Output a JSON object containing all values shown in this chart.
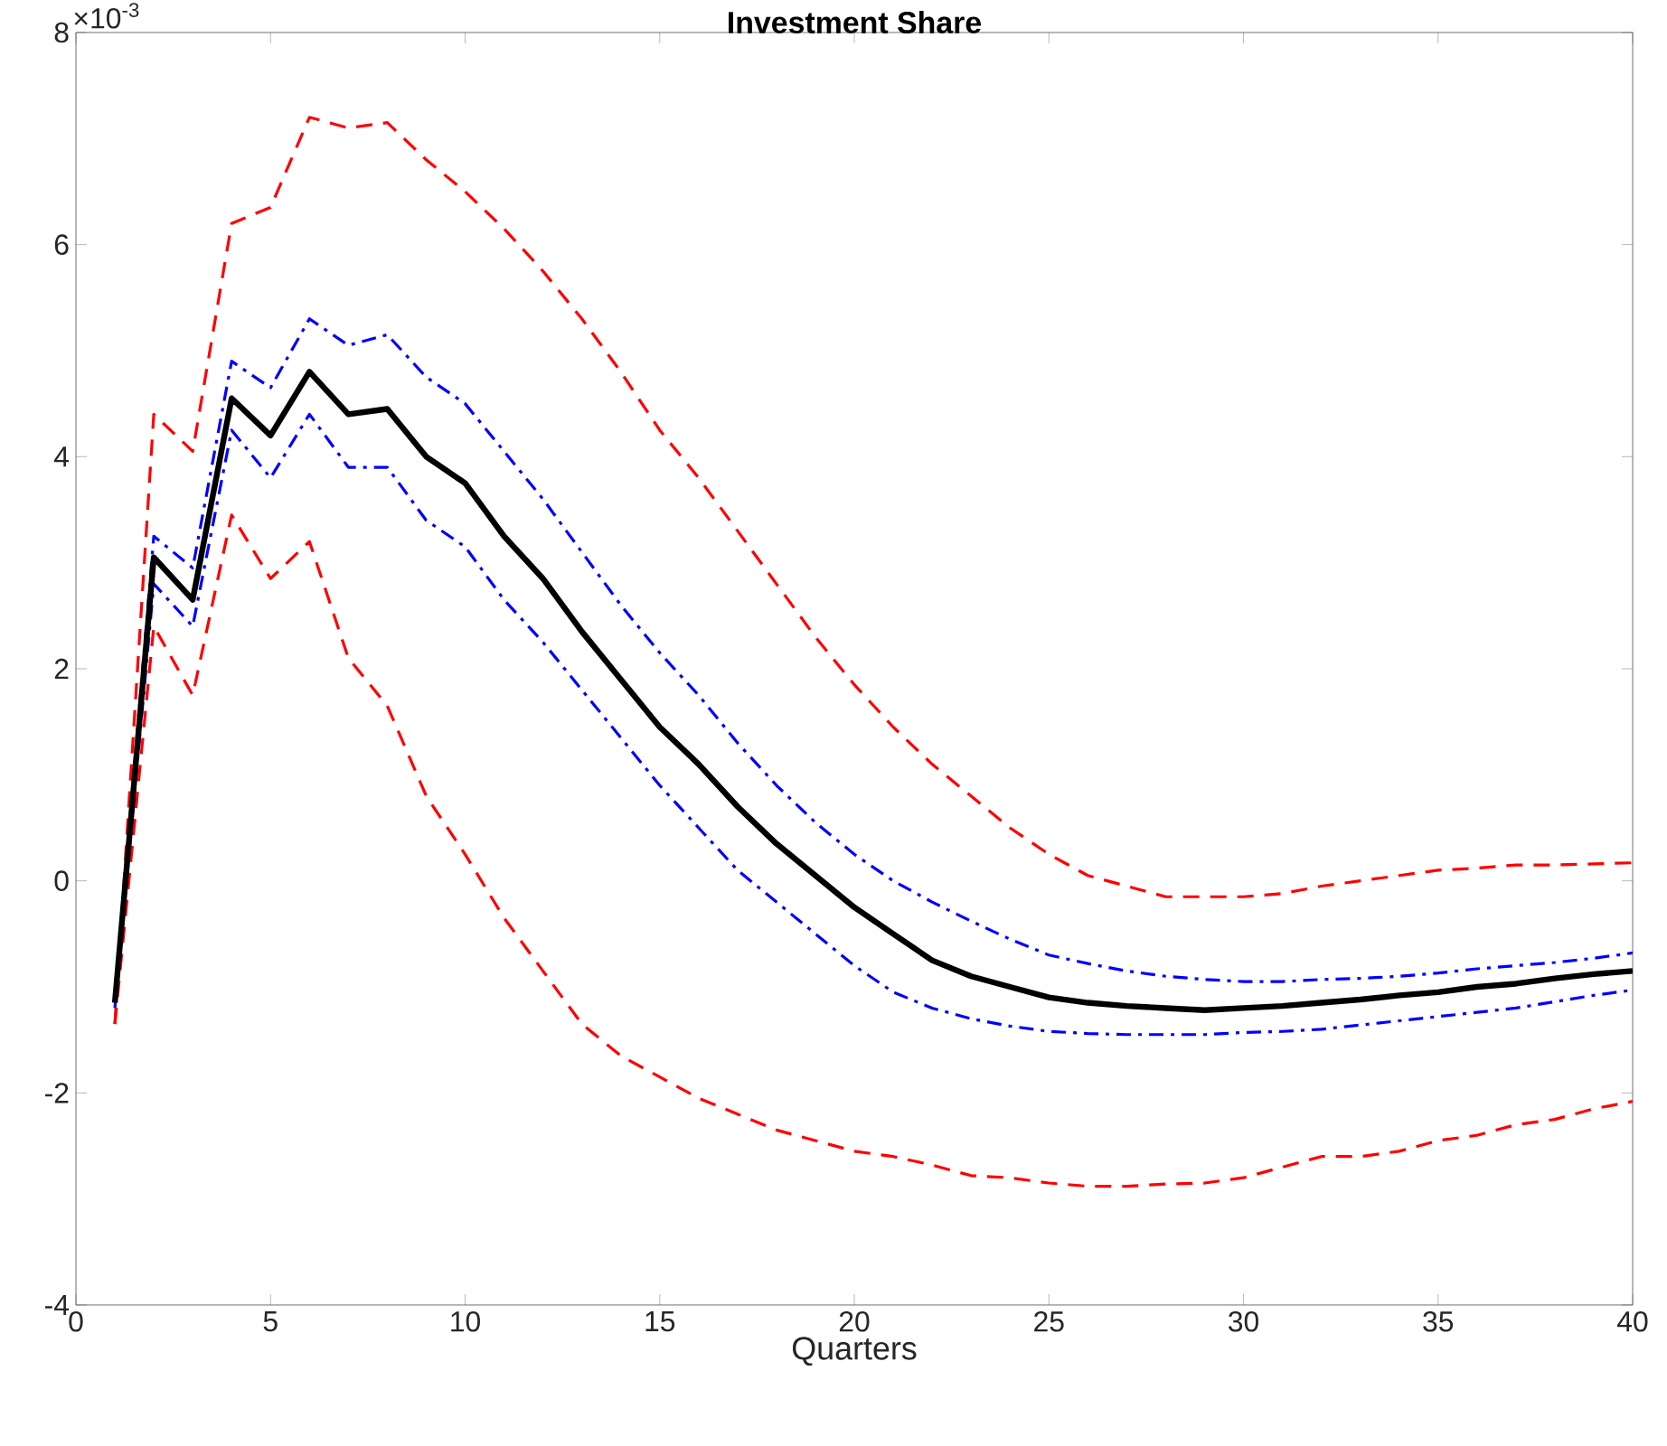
{
  "chart_data": {
    "type": "line",
    "title": "Investment Share",
    "xlabel": "Quarters",
    "annotations": [
      "×10$^{-3}$"
    ],
    "x": [
      1,
      2,
      3,
      4,
      5,
      6,
      7,
      8,
      9,
      10,
      11,
      12,
      13,
      14,
      15,
      16,
      17,
      18,
      19,
      20,
      21,
      22,
      23,
      24,
      25,
      26,
      27,
      28,
      29,
      30,
      31,
      32,
      33,
      34,
      35,
      36,
      37,
      38,
      39,
      40
    ],
    "xlim": [
      0,
      40
    ],
    "ylim": [
      -4,
      8
    ],
    "xticks": [
      0,
      5,
      10,
      15,
      20,
      25,
      30,
      35,
      40
    ],
    "yticks": [
      -4,
      -2,
      0,
      2,
      4,
      6,
      8
    ],
    "grid": false,
    "series": [
      {
        "color": "#ff0000",
        "line_style": "dashed",
        "values": [
          -1.35,
          4.4,
          4.05,
          6.2,
          6.35,
          7.2,
          7.1,
          7.15,
          6.8,
          6.5,
          6.15,
          5.75,
          5.3,
          4.8,
          4.25,
          3.8,
          3.3,
          2.8,
          2.3,
          1.85,
          1.45,
          1.1,
          0.8,
          0.5,
          0.25,
          0.05,
          -0.05,
          -0.15,
          -0.15,
          -0.15,
          -0.12,
          -0.05,
          0,
          0.05,
          0.1,
          0.12,
          0.15,
          0.15,
          0.16,
          0.17
        ]
      },
      {
        "color": "#ff0000",
        "line_style": "dashed",
        "values": [
          -1.35,
          2.4,
          1.75,
          3.45,
          2.85,
          3.2,
          2.1,
          1.65,
          0.8,
          0.25,
          -0.35,
          -0.85,
          -1.35,
          -1.65,
          -1.85,
          -2.05,
          -2.2,
          -2.35,
          -2.45,
          -2.55,
          -2.6,
          -2.68,
          -2.78,
          -2.8,
          -2.85,
          -2.88,
          -2.88,
          -2.86,
          -2.85,
          -2.8,
          -2.7,
          -2.6,
          -2.6,
          -2.55,
          -2.45,
          -2.4,
          -2.3,
          -2.25,
          -2.15,
          -2.08
        ]
      },
      {
        "color": "#0000ff",
        "line_style": "dashdot",
        "values": [
          -1.1,
          3.25,
          2.95,
          4.9,
          4.65,
          5.3,
          5.05,
          5.15,
          4.75,
          4.5,
          4.05,
          3.6,
          3.1,
          2.6,
          2.15,
          1.75,
          1.3,
          0.9,
          0.55,
          0.25,
          0,
          -0.2,
          -0.38,
          -0.55,
          -0.7,
          -0.78,
          -0.85,
          -0.9,
          -0.93,
          -0.95,
          -0.95,
          -0.93,
          -0.92,
          -0.9,
          -0.87,
          -0.83,
          -0.8,
          -0.77,
          -0.73,
          -0.68
        ]
      },
      {
        "color": "#0000ff",
        "line_style": "dashdot",
        "values": [
          -1.2,
          2.8,
          2.4,
          4.25,
          3.8,
          4.4,
          3.9,
          3.9,
          3.4,
          3.15,
          2.65,
          2.25,
          1.8,
          1.35,
          0.9,
          0.5,
          0.1,
          -0.2,
          -0.5,
          -0.8,
          -1.05,
          -1.2,
          -1.3,
          -1.37,
          -1.42,
          -1.44,
          -1.45,
          -1.45,
          -1.45,
          -1.43,
          -1.42,
          -1.4,
          -1.36,
          -1.32,
          -1.28,
          -1.24,
          -1.2,
          -1.14,
          -1.08,
          -1.03
        ]
      },
      {
        "color": "#000000",
        "line_style": "solid",
        "values": [
          -1.15,
          3.05,
          2.65,
          4.55,
          4.2,
          4.8,
          4.4,
          4.45,
          4.0,
          3.75,
          3.25,
          2.85,
          2.35,
          1.9,
          1.45,
          1.1,
          0.7,
          0.35,
          0.05,
          -0.25,
          -0.5,
          -0.75,
          -0.9,
          -1.0,
          -1.1,
          -1.15,
          -1.18,
          -1.2,
          -1.22,
          -1.2,
          -1.18,
          -1.15,
          -1.12,
          -1.08,
          -1.05,
          -1.0,
          -0.97,
          -0.92,
          -0.88,
          -0.85
        ]
      }
    ]
  }
}
